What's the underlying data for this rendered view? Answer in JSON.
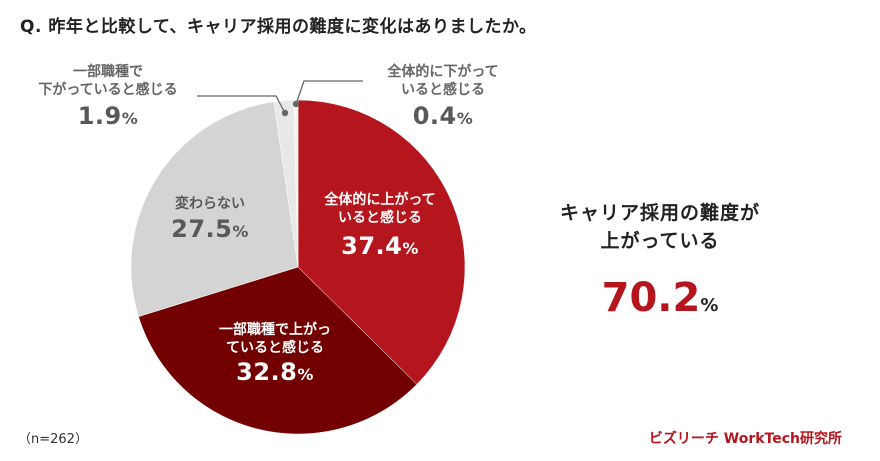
{
  "title": "Q. 昨年と比較して、キャリア採用の難度に変化はありましたか。",
  "chart_data": {
    "type": "pie",
    "title": "Q. 昨年と比較して、キャリア採用の難度に変化はありましたか。",
    "start_angle_deg": 0,
    "direction": "clockwise",
    "slices": [
      {
        "label": "全体的に上がっていると感じる",
        "value": 37.4,
        "color": "#B5151D"
      },
      {
        "label": "一部職種で上がっていると感じる",
        "value": 32.8,
        "color": "#730000"
      },
      {
        "label": "変わらない",
        "value": 27.5,
        "color": "#D4D4D4"
      },
      {
        "label": "一部職種で下がっていると感じる",
        "value": 1.9,
        "color": "#E8E8E8"
      },
      {
        "label": "全体的に下がっていると感じる",
        "value": 0.4,
        "color": "#F3F3F3"
      }
    ],
    "sample_size": "n=262",
    "annotation": {
      "text": "キャリア採用の難度が上がっている",
      "value": 70.2
    }
  },
  "labels": {
    "up_all": {
      "line1": "全体的に上がって",
      "line2": "いると感じる",
      "value": "37.4",
      "unit": "%"
    },
    "up_some": {
      "line1": "一部職種で上がっ",
      "line2": "ていると感じる",
      "value": "32.8",
      "unit": "%"
    },
    "same": {
      "line1": "変わらない",
      "value": "27.5",
      "unit": "%"
    },
    "down_some": {
      "line1": "一部職種で",
      "line2": "下がっていると感じる",
      "value": "1.9",
      "unit": "%"
    },
    "down_all": {
      "line1": "全体的に下がって",
      "line2": "いると感じる",
      "value": "0.4",
      "unit": "%"
    }
  },
  "summary": {
    "line1": "キャリア採用の難度が",
    "line2": "上がっている",
    "value": "70.2",
    "unit": "%"
  },
  "footer": {
    "sample": "（n=262）",
    "credit": "ビズリーチ WorkTech研究所"
  }
}
